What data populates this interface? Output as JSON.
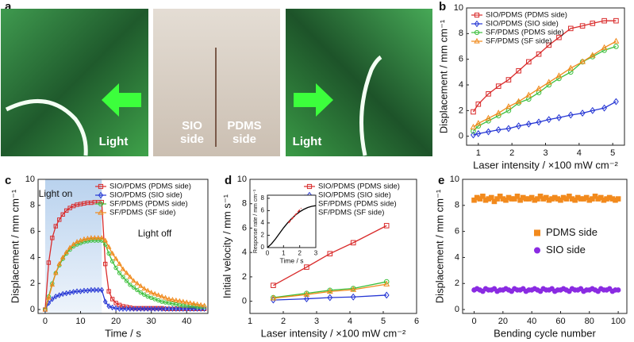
{
  "photo_panel": {
    "label": "a",
    "captions": [
      "Light",
      "SIO side",
      "PDMS side",
      "Light"
    ]
  },
  "chart_data": [
    {
      "type": "scatter",
      "panel_label": "b",
      "xlabel": "Laser intensity / ×100 mW cm⁻²",
      "ylabel": "Displacement / mm cm⁻¹",
      "x": [
        0.85,
        1.0,
        1.3,
        1.6,
        1.9,
        2.2,
        2.5,
        2.8,
        3.1,
        3.4,
        3.75,
        4.1,
        4.4,
        4.75,
        5.1
      ],
      "xlim": [
        0.65,
        5.35
      ],
      "xticks": [
        1,
        2,
        3,
        4,
        5
      ],
      "ylim": [
        -0.7,
        10
      ],
      "yticks": [
        0,
        2,
        4,
        6,
        8,
        10
      ],
      "lines": true,
      "legend": "upper left",
      "series": [
        {
          "name": "SIO/PDMS (PDMS side)",
          "color": "#d92b2b",
          "marker": "square",
          "values": [
            1.9,
            2.5,
            3.3,
            3.9,
            4.4,
            5.1,
            5.8,
            6.4,
            7.1,
            7.7,
            8.4,
            8.6,
            8.8,
            9.0,
            9.0
          ]
        },
        {
          "name": "SIO/PDMS (SIO side)",
          "color": "#2536d4",
          "marker": "diamond",
          "values": [
            0.1,
            0.2,
            0.35,
            0.5,
            0.6,
            0.8,
            0.95,
            1.1,
            1.3,
            1.45,
            1.65,
            1.8,
            2.0,
            2.2,
            2.7
          ]
        },
        {
          "name": "SF/PDMS (PDMS side)",
          "color": "#3cbf3c",
          "marker": "circle",
          "values": [
            0.4,
            0.8,
            1.2,
            1.6,
            2.0,
            2.6,
            2.9,
            3.4,
            4.0,
            4.5,
            5.0,
            5.8,
            6.2,
            6.7,
            7.0
          ]
        },
        {
          "name": "SF/PDMS (SF side)",
          "color": "#f08a1c",
          "marker": "triangle",
          "values": [
            0.7,
            1.0,
            1.4,
            1.8,
            2.3,
            2.7,
            3.2,
            3.7,
            4.2,
            4.7,
            5.3,
            5.8,
            6.3,
            6.9,
            7.4
          ]
        }
      ]
    },
    {
      "type": "line",
      "panel_label": "c",
      "xlabel": "Time / s",
      "ylabel": "Displacement / mm cm⁻¹",
      "x": [
        0,
        1,
        2,
        3,
        4,
        5,
        6,
        7,
        8,
        9,
        10,
        11,
        12,
        13,
        14,
        15,
        16,
        17,
        18,
        19,
        20,
        21,
        22,
        23,
        24,
        25,
        26,
        27,
        28,
        29,
        30,
        31,
        32,
        33,
        34,
        35,
        36,
        37,
        38,
        39,
        40,
        41,
        42,
        43,
        44,
        45
      ],
      "xlim": [
        -2,
        46
      ],
      "xticks": [
        0,
        10,
        20,
        30,
        40
      ],
      "ylim": [
        -0.3,
        10
      ],
      "yticks": [
        0,
        2,
        4,
        6,
        8,
        10
      ],
      "highlight_x": [
        0,
        16
      ],
      "annotations": [
        "Light on",
        "Light off"
      ],
      "legend": "upper right",
      "series": [
        {
          "name": "SIO/PDMS (PDMS side)",
          "color": "#d92b2b",
          "marker": "square",
          "values": [
            0,
            3.6,
            5.5,
            6.4,
            6.9,
            7.3,
            7.6,
            7.8,
            7.95,
            8.05,
            8.1,
            8.15,
            8.2,
            8.2,
            8.25,
            8.25,
            8.25,
            3.5,
            1.4,
            0.8,
            0.5,
            0.35,
            0.25,
            0.2,
            0.15,
            0.1,
            0.1,
            0.1,
            0.1,
            0.1,
            0.1,
            0.1,
            0.1,
            0.1,
            0.05,
            0.05,
            0.05,
            0.05,
            0.05,
            0.05,
            0.05,
            0.05,
            0.05,
            0.05,
            0.05,
            0.05
          ]
        },
        {
          "name": "SIO/PDMS (SIO side)",
          "color": "#2536d4",
          "marker": "diamond",
          "values": [
            0,
            0.5,
            0.8,
            1.0,
            1.1,
            1.2,
            1.25,
            1.3,
            1.35,
            1.4,
            1.4,
            1.45,
            1.45,
            1.5,
            1.5,
            1.5,
            1.5,
            0.6,
            0.25,
            0.15,
            0.1,
            0.05,
            0.05,
            0.05,
            0.05,
            0.05,
            0.05,
            0.05,
            0.05,
            0.05,
            0.05,
            0.05,
            0.05,
            0.05,
            0.05,
            0.05,
            0.05,
            0.05,
            0.05,
            0.05,
            0.05,
            0.05,
            0.05,
            0.05,
            0.05,
            0.05
          ]
        },
        {
          "name": "SF/PDMS (PDMS side)",
          "color": "#3cbf3c",
          "marker": "circle",
          "values": [
            0,
            1.0,
            2.0,
            2.8,
            3.4,
            3.9,
            4.3,
            4.6,
            4.85,
            5.0,
            5.1,
            5.2,
            5.25,
            5.3,
            5.3,
            5.3,
            5.3,
            5.0,
            4.3,
            3.7,
            3.2,
            2.8,
            2.5,
            2.2,
            1.9,
            1.7,
            1.5,
            1.3,
            1.15,
            1.0,
            0.9,
            0.8,
            0.7,
            0.6,
            0.55,
            0.5,
            0.45,
            0.4,
            0.35,
            0.3,
            0.3,
            0.25,
            0.25,
            0.2,
            0.2,
            0.2
          ]
        },
        {
          "name": "SF/PDMS (SF side)",
          "color": "#f08a1c",
          "marker": "triangle",
          "values": [
            0,
            0.9,
            1.9,
            2.8,
            3.5,
            4.0,
            4.4,
            4.75,
            5.0,
            5.2,
            5.3,
            5.4,
            5.45,
            5.5,
            5.5,
            5.5,
            5.5,
            5.3,
            4.8,
            4.3,
            3.9,
            3.5,
            3.1,
            2.8,
            2.5,
            2.2,
            2.0,
            1.8,
            1.6,
            1.45,
            1.3,
            1.2,
            1.1,
            1.0,
            0.9,
            0.8,
            0.75,
            0.7,
            0.65,
            0.6,
            0.55,
            0.5,
            0.45,
            0.4,
            0.35,
            0.3
          ]
        }
      ]
    },
    {
      "type": "scatter",
      "panel_label": "d",
      "xlabel": "Laser intensity / ×100 mW cm⁻²",
      "ylabel": "Initial velocity / mm s⁻¹",
      "x": [
        1.7,
        2.7,
        3.4,
        4.1,
        5.1
      ],
      "xlim": [
        1,
        6
      ],
      "xticks": [
        1,
        2,
        3,
        4,
        5,
        6
      ],
      "ylim": [
        -1,
        10
      ],
      "yticks": [
        0,
        2,
        4,
        6,
        8,
        10
      ],
      "lines": true,
      "legend": "upper right",
      "series": [
        {
          "name": "SIO/PDMS (PDMS side)",
          "color": "#d92b2b",
          "marker": "square",
          "values": [
            1.3,
            2.8,
            3.9,
            4.8,
            6.2
          ]
        },
        {
          "name": "SIO/PDMS (SIO side)",
          "color": "#2536d4",
          "marker": "diamond",
          "values": [
            0.1,
            0.2,
            0.3,
            0.35,
            0.5
          ]
        },
        {
          "name": "SF/PDMS (PDMS side)",
          "color": "#3cbf3c",
          "marker": "circle",
          "values": [
            0.3,
            0.65,
            0.9,
            1.05,
            1.6
          ]
        },
        {
          "name": "SF/PDMS (SF side)",
          "color": "#f08a1c",
          "marker": "triangle",
          "values": [
            0.25,
            0.55,
            0.8,
            0.95,
            1.4
          ]
        }
      ],
      "inset": {
        "xlabel": "Time / s",
        "ylabel": "Response rate / mm cm⁻¹",
        "xlim": [
          0,
          3
        ],
        "xticks": [
          0,
          1,
          2,
          3
        ],
        "ylim": [
          0,
          8.5
        ],
        "yticks": [
          0,
          2,
          4,
          6,
          8
        ],
        "x": [
          0,
          0.25,
          0.5,
          0.75,
          1.0,
          1.25,
          1.5,
          1.75,
          2.0,
          2.25,
          2.5,
          2.75,
          3.0
        ],
        "values": [
          0,
          0.6,
          1.4,
          2.3,
          3.2,
          4.0,
          4.7,
          5.3,
          5.8,
          6.2,
          6.5,
          6.7,
          6.8
        ],
        "color": "#000000",
        "tangent": {
          "x": [
            1.3,
            2.1
          ],
          "values": [
            4.0,
            6.4
          ],
          "color": "#d92b2b"
        }
      }
    },
    {
      "type": "scatter",
      "panel_label": "e",
      "xlabel": "Bending cycle number",
      "ylabel": "Displacement / mm cm⁻¹",
      "x": [
        0,
        2,
        4,
        6,
        8,
        10,
        12,
        14,
        16,
        18,
        20,
        22,
        24,
        26,
        28,
        30,
        32,
        34,
        36,
        38,
        40,
        42,
        44,
        46,
        48,
        50,
        52,
        54,
        56,
        58,
        60,
        62,
        64,
        66,
        68,
        70,
        72,
        74,
        76,
        78,
        80,
        82,
        84,
        86,
        88,
        90,
        92,
        94,
        96,
        98,
        100
      ],
      "xlim": [
        -8,
        106
      ],
      "xticks": [
        0,
        20,
        40,
        60,
        80,
        100
      ],
      "ylim": [
        -0.3,
        10
      ],
      "yticks": [
        0,
        2,
        4,
        6,
        8,
        10
      ],
      "filled": true,
      "legend": "center right",
      "series": [
        {
          "name": "PDMS side",
          "color": "#f28a1d",
          "marker": "square",
          "values": [
            8.4,
            8.6,
            8.5,
            8.7,
            8.4,
            8.5,
            8.6,
            8.3,
            8.5,
            8.7,
            8.5,
            8.4,
            8.6,
            8.5,
            8.5,
            8.7,
            8.4,
            8.6,
            8.5,
            8.5,
            8.6,
            8.4,
            8.5,
            8.7,
            8.5,
            8.6,
            8.4,
            8.5,
            8.6,
            8.5,
            8.4,
            8.6,
            8.5,
            8.7,
            8.5,
            8.4,
            8.6,
            8.5,
            8.5,
            8.6,
            8.4,
            8.5,
            8.7,
            8.5,
            8.6,
            8.4,
            8.5,
            8.6,
            8.5,
            8.4,
            8.5
          ]
        },
        {
          "name": "SIO side",
          "color": "#8a2be2",
          "marker": "circle",
          "values": [
            1.5,
            1.6,
            1.5,
            1.4,
            1.6,
            1.5,
            1.5,
            1.6,
            1.4,
            1.5,
            1.5,
            1.6,
            1.5,
            1.4,
            1.6,
            1.5,
            1.5,
            1.6,
            1.4,
            1.5,
            1.5,
            1.6,
            1.5,
            1.4,
            1.6,
            1.5,
            1.5,
            1.6,
            1.4,
            1.5,
            1.5,
            1.6,
            1.5,
            1.4,
            1.6,
            1.5,
            1.5,
            1.6,
            1.4,
            1.5,
            1.5,
            1.6,
            1.5,
            1.4,
            1.6,
            1.5,
            1.5,
            1.6,
            1.4,
            1.5,
            1.5
          ]
        }
      ]
    }
  ]
}
